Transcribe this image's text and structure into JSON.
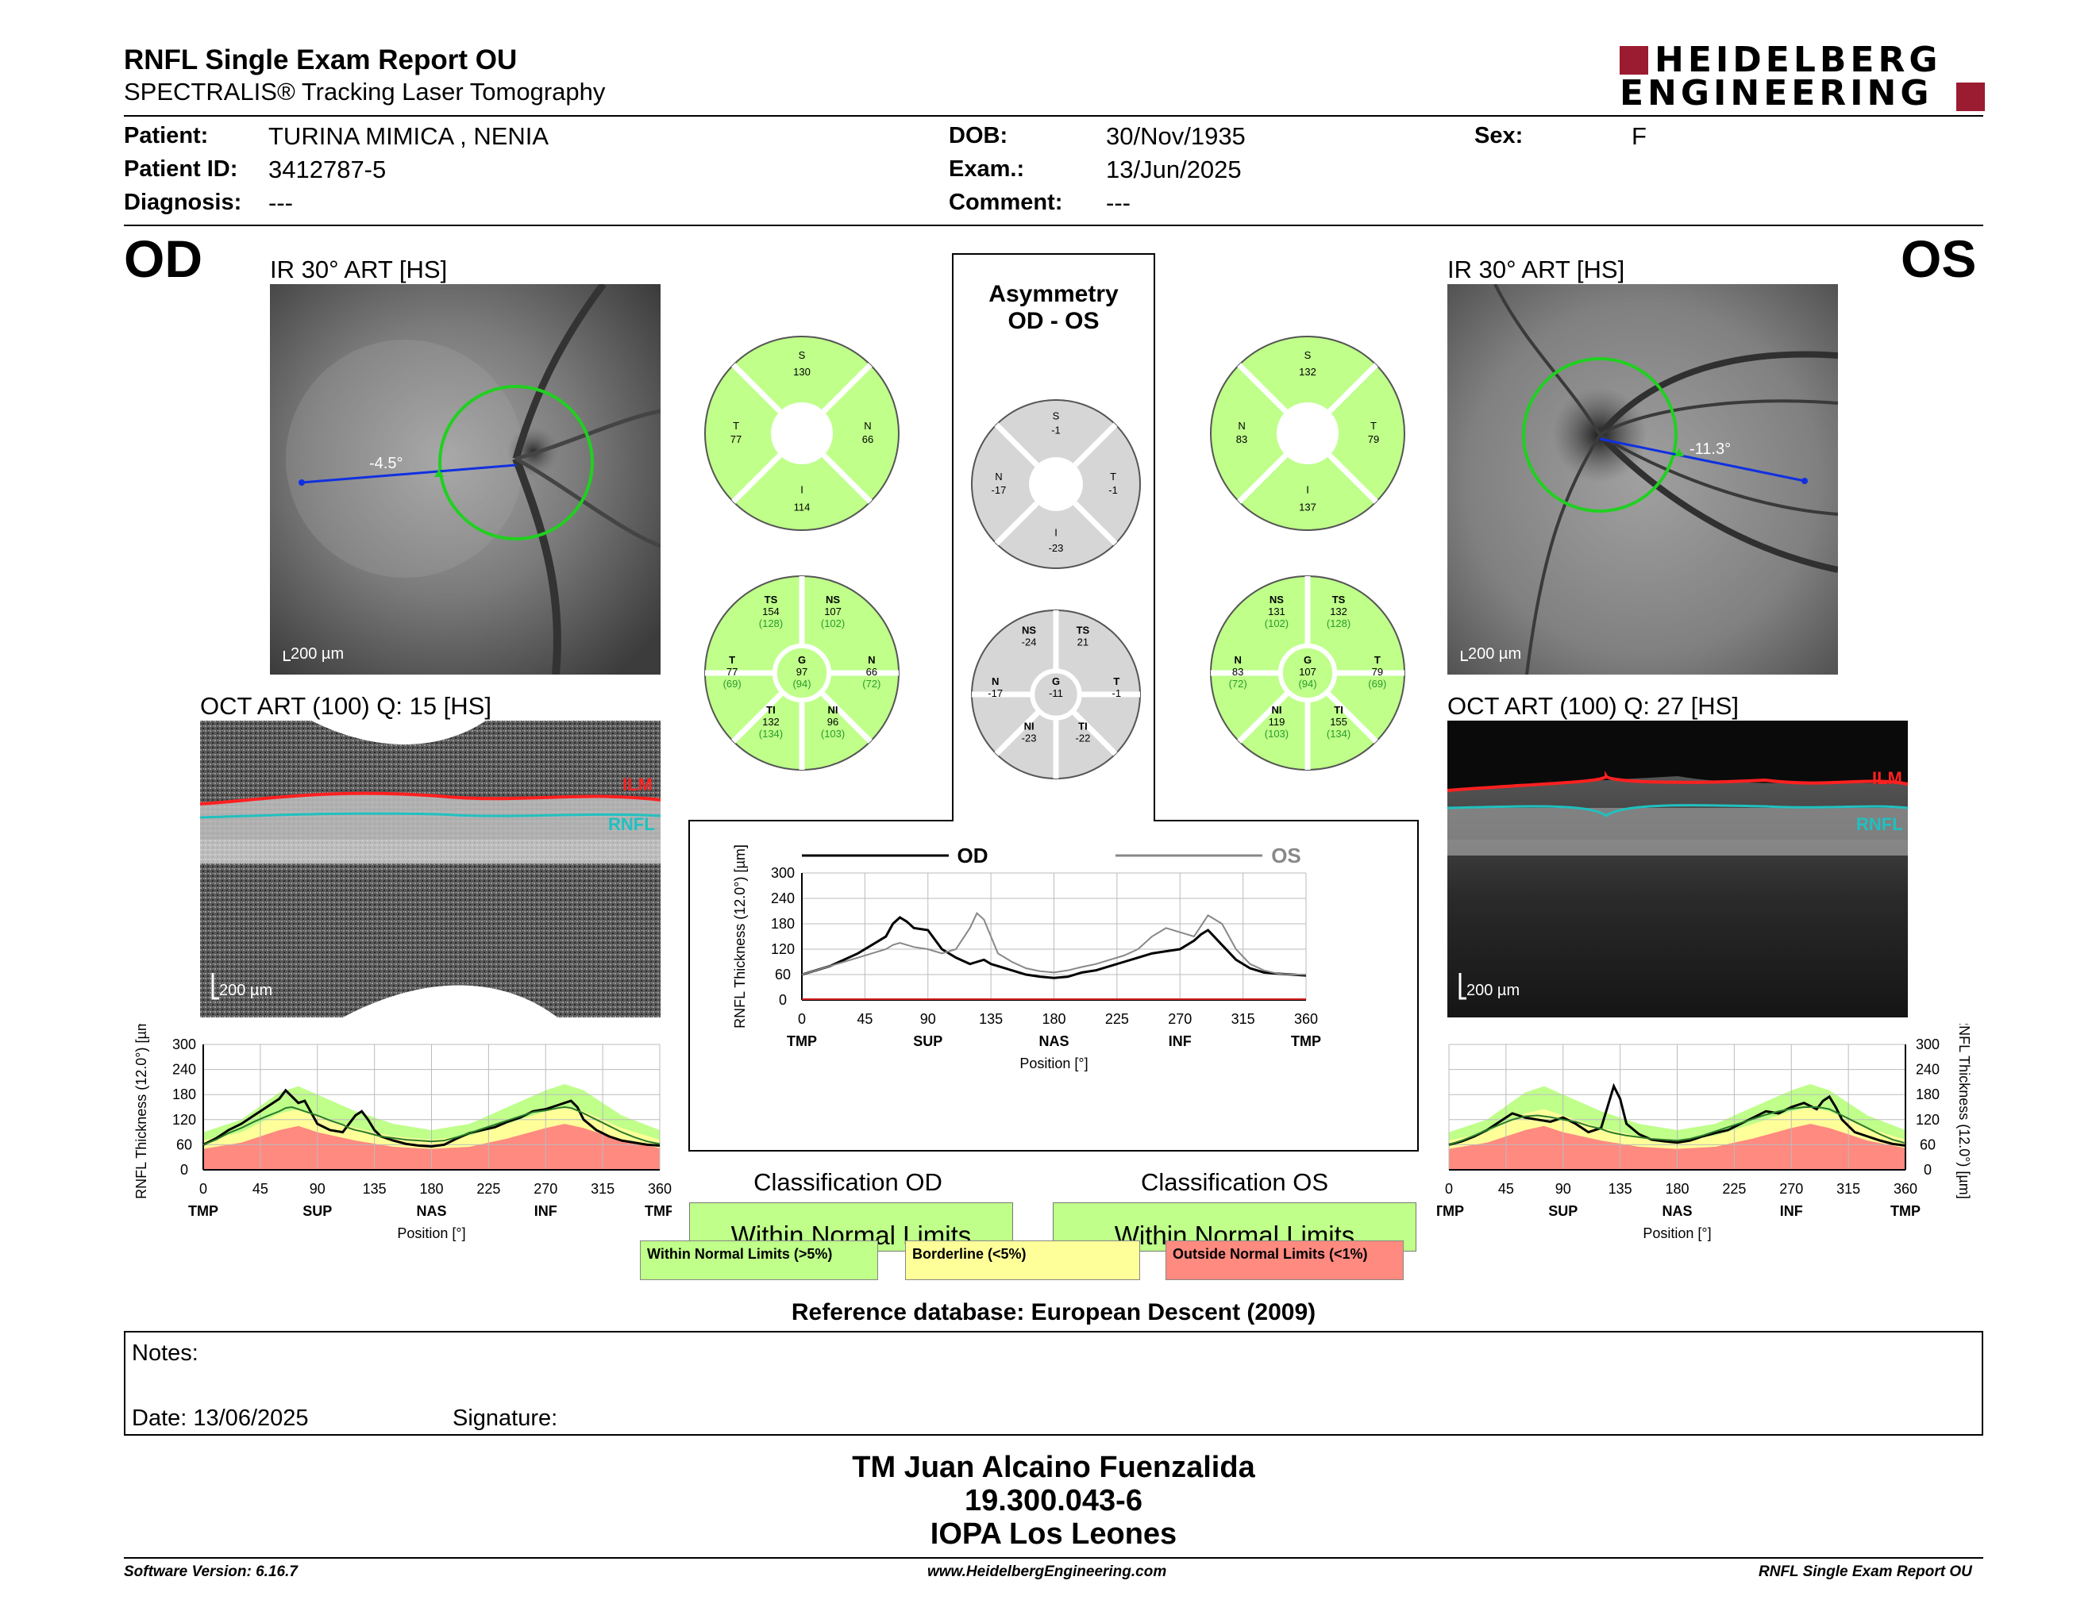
{
  "header": {
    "title": "RNFL Single Exam Report OU",
    "subtitle": "SPECTRALIS® Tracking Laser Tomography",
    "logo_line1": "HEIDELBERG",
    "logo_line2": "ENGINEERING"
  },
  "patient": {
    "patient_label": "Patient:",
    "patient_value": "TURINA MIMICA , NENIA",
    "id_label": "Patient ID:",
    "id_value": "3412787-5",
    "diagnosis_label": "Diagnosis:",
    "diagnosis_value": "---",
    "dob_label": "DOB:",
    "dob_value": "30/Nov/1935",
    "exam_label": "Exam.:",
    "exam_value": "13/Jun/2025",
    "comment_label": "Comment:",
    "comment_value": "---",
    "sex_label": "Sex:",
    "sex_value": "F"
  },
  "od": {
    "eye": "OD",
    "ir_label": "IR 30° ART [HS]",
    "ir_angle": "-4.5°",
    "ir_scale": "200 µm",
    "oct_label": "OCT ART (100) Q: 15 [HS]",
    "oct_scale": "200 µm",
    "ilm": "ILM",
    "rnfl": "RNFL",
    "quad": {
      "S": "130",
      "T": "77",
      "N": "66",
      "I": "114"
    },
    "sect": {
      "TS": "154",
      "TS_ref": "(128)",
      "NS": "107",
      "NS_ref": "(102)",
      "T": "77",
      "T_ref": "(69)",
      "G": "97",
      "G_ref": "(94)",
      "N": "66",
      "N_ref": "(72)",
      "TI": "132",
      "TI_ref": "(134)",
      "NI": "96",
      "NI_ref": "(103)"
    },
    "classification_title": "Classification OD",
    "classification_value": "Within Normal Limits"
  },
  "os": {
    "eye": "OS",
    "ir_label": "IR 30° ART [HS]",
    "ir_angle": "-11.3°",
    "ir_scale": "200 µm",
    "oct_label": "OCT ART (100) Q: 27 [HS]",
    "oct_scale": "200 µm",
    "ilm": "ILM",
    "rnfl": "RNFL",
    "quad": {
      "S": "132",
      "N": "83",
      "T": "79",
      "I": "137"
    },
    "sect": {
      "NS": "131",
      "NS_ref": "(102)",
      "TS": "132",
      "TS_ref": "(128)",
      "N": "83",
      "N_ref": "(72)",
      "G": "107",
      "G_ref": "(94)",
      "T": "79",
      "T_ref": "(69)",
      "NI": "119",
      "NI_ref": "(103)",
      "TI": "155",
      "TI_ref": "(134)"
    },
    "classification_title": "Classification OS",
    "classification_value": "Within Normal Limits"
  },
  "asymmetry": {
    "title_line1": "Asymmetry",
    "title_line2": "OD - OS",
    "quad": {
      "S": "-1",
      "N": "-17",
      "T": "-1",
      "I": "-23"
    },
    "sect": {
      "NS": "-24",
      "TS": "21",
      "N": "-17",
      "G": "-11",
      "T": "-1",
      "NI": "-23",
      "TI": "-22"
    }
  },
  "labels": {
    "S": "S",
    "T": "T",
    "N": "N",
    "I": "I",
    "G": "G",
    "TS": "TS",
    "NS": "NS",
    "TI": "TI",
    "NI": "NI"
  },
  "chart_common": {
    "ylabel": "RNFL Thickness (12.0°) [µm]",
    "xlabel": "Position [°]",
    "yticks": [
      "0",
      "60",
      "120",
      "180",
      "240",
      "300"
    ],
    "xticks": [
      "0",
      "45",
      "90",
      "135",
      "180",
      "225",
      "270",
      "315",
      "360"
    ],
    "region_labels": [
      "TMP",
      "SUP",
      "NAS",
      "INF",
      "TMP"
    ],
    "legend_od": "OD",
    "legend_os": "OS"
  },
  "chart_data": [
    {
      "type": "line",
      "name": "OD RNFL profile",
      "x": [
        0,
        10,
        20,
        30,
        40,
        50,
        60,
        65,
        70,
        75,
        80,
        90,
        100,
        110,
        115,
        120,
        125,
        130,
        135,
        140,
        150,
        160,
        170,
        180,
        190,
        200,
        210,
        220,
        230,
        240,
        250,
        260,
        270,
        280,
        285,
        290,
        295,
        300,
        310,
        320,
        330,
        340,
        350,
        360
      ],
      "series": [
        {
          "values": [
            60,
            75,
            95,
            110,
            130,
            150,
            170,
            190,
            175,
            160,
            165,
            110,
            95,
            90,
            110,
            130,
            140,
            120,
            95,
            80,
            70,
            62,
            58,
            56,
            60,
            75,
            88,
            95,
            102,
            115,
            125,
            140,
            145,
            155,
            160,
            165,
            150,
            120,
            95,
            80,
            70,
            65,
            60,
            58
          ]
        },
        {
          "values": [
            60,
            72,
            88,
            100,
            115,
            128,
            140,
            148,
            150,
            145,
            140,
            130,
            118,
            108,
            100,
            95,
            92,
            88,
            84,
            80,
            76,
            72,
            70,
            68,
            70,
            78,
            88,
            98,
            108,
            118,
            128,
            138,
            142,
            148,
            150,
            148,
            142,
            135,
            120,
            105,
            90,
            78,
            68,
            62
          ]
        }
      ],
      "xlim": [
        0,
        360
      ],
      "ylim": [
        0,
        300
      ]
    },
    {
      "type": "line",
      "name": "OD vs OS comparison",
      "x": [
        0,
        10,
        20,
        30,
        40,
        50,
        60,
        65,
        70,
        75,
        80,
        90,
        100,
        110,
        120,
        125,
        130,
        135,
        140,
        150,
        160,
        170,
        180,
        190,
        200,
        210,
        220,
        230,
        240,
        250,
        260,
        270,
        280,
        285,
        290,
        300,
        310,
        320,
        330,
        340,
        350,
        360
      ],
      "series": [
        {
          "name": "OD",
          "values": [
            60,
            70,
            80,
            95,
            110,
            130,
            150,
            180,
            195,
            185,
            170,
            165,
            120,
            100,
            85,
            90,
            95,
            85,
            80,
            70,
            60,
            55,
            52,
            55,
            65,
            70,
            80,
            90,
            100,
            110,
            115,
            120,
            140,
            155,
            165,
            130,
            95,
            75,
            65,
            62,
            60,
            58
          ]
        },
        {
          "name": "OS",
          "values": [
            60,
            70,
            80,
            90,
            100,
            110,
            120,
            130,
            135,
            130,
            125,
            120,
            110,
            120,
            170,
            205,
            190,
            150,
            110,
            90,
            75,
            68,
            65,
            70,
            78,
            85,
            95,
            105,
            120,
            150,
            170,
            160,
            150,
            175,
            200,
            180,
            120,
            85,
            70,
            62,
            60,
            60
          ]
        }
      ],
      "xlim": [
        0,
        360
      ],
      "ylim": [
        0,
        300
      ]
    },
    {
      "type": "line",
      "name": "OS RNFL profile",
      "x": [
        0,
        10,
        20,
        30,
        40,
        50,
        60,
        70,
        80,
        90,
        100,
        110,
        120,
        125,
        130,
        135,
        140,
        150,
        160,
        170,
        180,
        190,
        200,
        210,
        220,
        230,
        240,
        250,
        260,
        270,
        280,
        290,
        295,
        300,
        305,
        310,
        320,
        330,
        340,
        350,
        360
      ],
      "series": [
        {
          "values": [
            60,
            68,
            80,
            95,
            115,
            135,
            125,
            120,
            115,
            125,
            110,
            90,
            100,
            150,
            200,
            170,
            110,
            85,
            72,
            68,
            65,
            70,
            80,
            88,
            95,
            110,
            125,
            140,
            135,
            150,
            160,
            145,
            165,
            175,
            150,
            120,
            90,
            80,
            70,
            62,
            58
          ]
        },
        {
          "values": [
            60,
            70,
            82,
            95,
            108,
            120,
            128,
            130,
            126,
            120,
            115,
            105,
            98,
            92,
            88,
            85,
            82,
            78,
            74,
            72,
            70,
            74,
            82,
            92,
            102,
            112,
            122,
            132,
            140,
            146,
            150,
            150,
            148,
            145,
            138,
            130,
            115,
            100,
            85,
            72,
            64
          ]
        }
      ],
      "xlim": [
        0,
        360
      ],
      "ylim": [
        0,
        300
      ]
    }
  ],
  "legend_bar": {
    "wnl": "Within Normal Limits (>5%)",
    "borderline": "Borderline (<5%)",
    "onl": "Outside Normal Limits (<1%)"
  },
  "reference": "Reference database: European Descent (2009)",
  "notes": {
    "notes_label": "Notes:",
    "date_label": "Date: 13/06/2025",
    "signature_label": "Signature:"
  },
  "signer": {
    "name": "TM Juan Alcaino Fuenzalida",
    "id": "19.300.043-6",
    "org": "IOPA Los Leones"
  },
  "footer": {
    "software": "Software Version: 6.16.7",
    "url": "www.HeidelbergEngineering.com",
    "report": "RNFL Single Exam Report OU"
  },
  "colors": {
    "green": "#bfff8a",
    "yellow": "#ffff9a",
    "red": "#ff8a80",
    "gray": "#d6d6d6",
    "logo_red": "#9b1b30",
    "ilm": "#ff2020",
    "rnfl": "#20c0c0"
  }
}
